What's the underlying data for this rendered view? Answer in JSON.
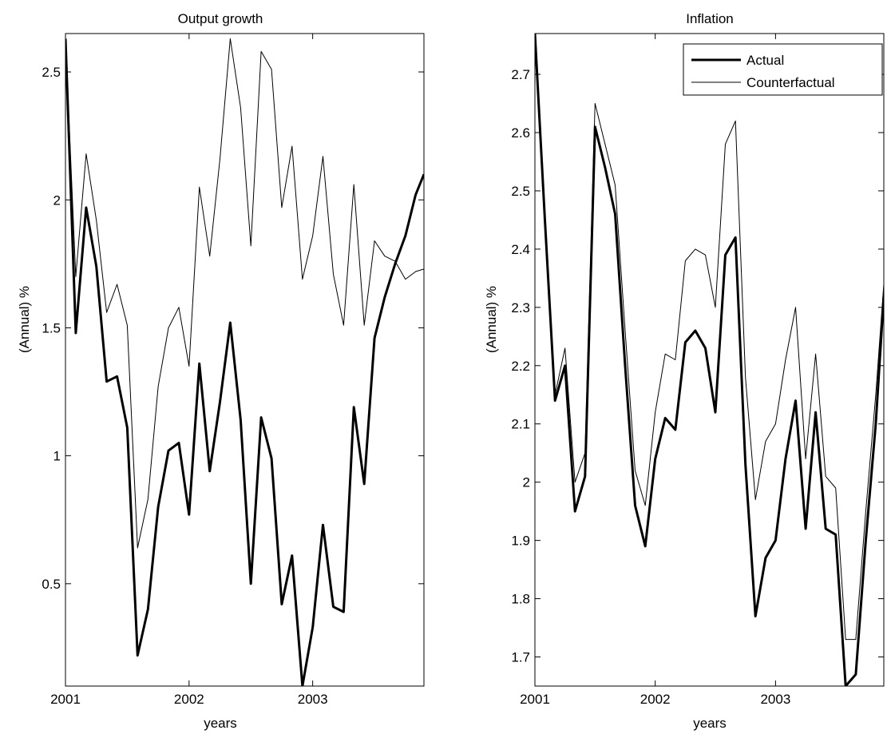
{
  "chart_data": [
    {
      "type": "line",
      "title": "Output growth",
      "xlabel": "years",
      "ylabel": "(Annual) %",
      "xlim": [
        2001.0,
        2003.9
      ],
      "ylim": [
        0.1,
        2.65
      ],
      "xticks": [
        2001,
        2002,
        2003
      ],
      "xtick_labels": [
        "2001",
        "2002",
        "2003"
      ],
      "yticks": [
        0.5,
        1,
        1.5,
        2,
        2.5
      ],
      "ytick_labels": [
        "0.5",
        "1",
        "1.5",
        "2",
        "2.5"
      ],
      "grid": false,
      "legend": null,
      "x": [
        2001.0,
        2001.083,
        2001.167,
        2001.25,
        2001.333,
        2001.417,
        2001.5,
        2001.583,
        2001.667,
        2001.75,
        2001.833,
        2001.917,
        2002.0,
        2002.083,
        2002.167,
        2002.25,
        2002.333,
        2002.417,
        2002.5,
        2002.583,
        2002.667,
        2002.75,
        2002.833,
        2002.917,
        2003.0,
        2003.083,
        2003.167,
        2003.25,
        2003.333,
        2003.417,
        2003.5,
        2003.583,
        2003.667,
        2003.75,
        2003.833,
        2003.9
      ],
      "series": [
        {
          "name": "Actual",
          "color": "#000000",
          "weight": "thick",
          "values": [
            2.63,
            1.48,
            1.97,
            1.74,
            1.29,
            1.31,
            1.11,
            0.22,
            0.4,
            0.8,
            1.02,
            1.05,
            0.77,
            1.36,
            0.94,
            1.21,
            1.52,
            1.14,
            0.5,
            1.15,
            0.99,
            0.42,
            0.61,
            0.1,
            0.33,
            0.73,
            0.41,
            0.39,
            1.19,
            0.89,
            1.46,
            1.62,
            1.75,
            1.86,
            2.02,
            2.1
          ]
        },
        {
          "name": "Counterfactual",
          "color": "#000000",
          "weight": "thin",
          "values": [
            2.63,
            1.7,
            2.18,
            1.92,
            1.56,
            1.67,
            1.51,
            0.64,
            0.83,
            1.27,
            1.5,
            1.58,
            1.35,
            2.05,
            1.78,
            2.16,
            2.63,
            2.36,
            1.82,
            2.58,
            2.51,
            1.97,
            2.21,
            1.69,
            1.86,
            2.17,
            1.71,
            1.51,
            2.06,
            1.51,
            1.84,
            1.78,
            1.76,
            1.69,
            1.72,
            1.73
          ]
        }
      ]
    },
    {
      "type": "line",
      "title": "Inflation",
      "xlabel": "years",
      "ylabel": "(Annual) %",
      "xlim": [
        2001.0,
        2003.9
      ],
      "ylim": [
        1.65,
        2.77
      ],
      "xticks": [
        2001,
        2002,
        2003
      ],
      "xtick_labels": [
        "2001",
        "2002",
        "2003"
      ],
      "yticks": [
        1.7,
        1.8,
        1.9,
        2.0,
        2.1,
        2.2,
        2.3,
        2.4,
        2.5,
        2.6,
        2.7
      ],
      "ytick_labels": [
        "1.7",
        "1.8",
        "1.9",
        "2",
        "2.1",
        "2.2",
        "2.3",
        "2.4",
        "2.5",
        "2.6",
        "2.7"
      ],
      "grid": false,
      "legend": "top-right",
      "x": [
        2001.0,
        2001.083,
        2001.167,
        2001.25,
        2001.333,
        2001.417,
        2001.5,
        2001.583,
        2001.667,
        2001.75,
        2001.833,
        2001.917,
        2002.0,
        2002.083,
        2002.167,
        2002.25,
        2002.333,
        2002.417,
        2002.5,
        2002.583,
        2002.667,
        2002.75,
        2002.833,
        2002.917,
        2003.0,
        2003.083,
        2003.167,
        2003.25,
        2003.333,
        2003.417,
        2003.5,
        2003.583,
        2003.667,
        2003.75,
        2003.833,
        2003.9
      ],
      "series": [
        {
          "name": "Actual",
          "color": "#000000",
          "weight": "thick",
          "values": [
            2.77,
            2.45,
            2.14,
            2.2,
            1.95,
            2.01,
            2.61,
            2.54,
            2.46,
            2.2,
            1.96,
            1.89,
            2.04,
            2.11,
            2.09,
            2.24,
            2.26,
            2.23,
            2.12,
            2.39,
            2.42,
            2.03,
            1.77,
            1.87,
            1.9,
            2.04,
            2.14,
            1.92,
            2.12,
            1.92,
            1.91,
            1.65,
            1.67,
            1.9,
            2.1,
            2.32
          ]
        },
        {
          "name": "Counterfactual",
          "color": "#000000",
          "weight": "thin",
          "values": [
            2.77,
            2.45,
            2.15,
            2.23,
            2.0,
            2.05,
            2.65,
            2.58,
            2.51,
            2.26,
            2.02,
            1.96,
            2.12,
            2.22,
            2.21,
            2.38,
            2.4,
            2.39,
            2.3,
            2.58,
            2.62,
            2.18,
            1.97,
            2.07,
            2.1,
            2.21,
            2.3,
            2.04,
            2.22,
            2.01,
            1.99,
            1.73,
            1.73,
            1.95,
            2.15,
            2.34
          ]
        }
      ]
    }
  ]
}
